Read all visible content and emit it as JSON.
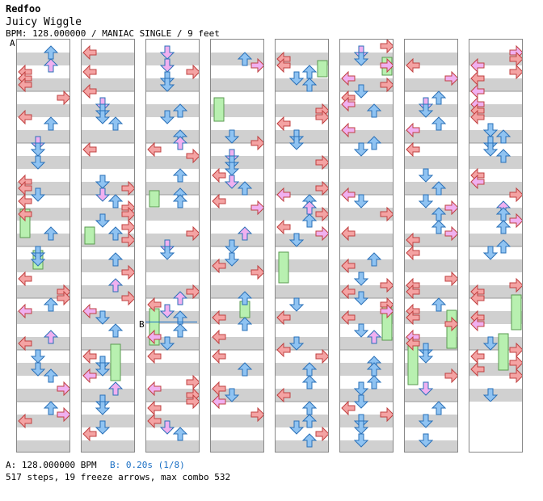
{
  "song": {
    "artist": "Redfoo",
    "title": "Juicy Wiggle",
    "bpm_line": "BPM: 128.000000 / MANIAC SINGLE / 9 feet"
  },
  "markers": {
    "a": "A",
    "b": "B"
  },
  "footer": {
    "a_label": "A: 128.000000 BPM",
    "b_label": "B: 0.20s (1/8)",
    "stats": "517 steps, 19 freeze arrows, max combo 532"
  },
  "colors": {
    "left": "#f4a3a3",
    "down": "#8fc3f2",
    "up": "#8fc3f2",
    "right": "#f4a3a3",
    "eighth": "#f0b0f0",
    "freeze": "#b8f0b0",
    "band": "#d0d0d0",
    "b_marker": "#1a6fc4"
  },
  "chart": {
    "measures_per_column": 8,
    "column_count": 8,
    "total_measures": 60,
    "steps": 517,
    "freeze_arrows": 19,
    "max_combo": 532
  }
}
